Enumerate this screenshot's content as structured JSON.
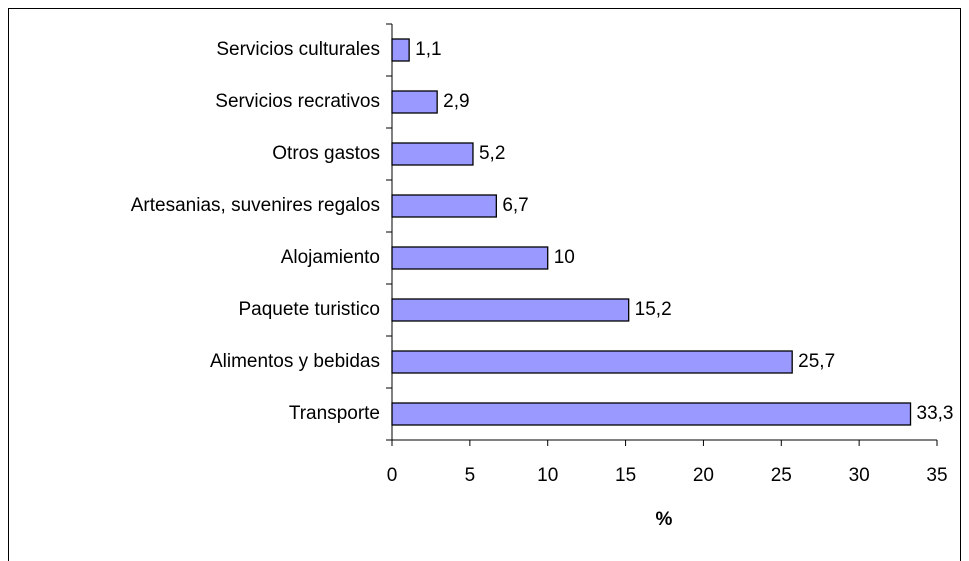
{
  "chart_data": {
    "type": "bar",
    "orientation": "horizontal",
    "categories": [
      "Servicios culturales",
      "Servicios recrativos",
      "Otros gastos",
      "Artesanias, suvenires regalos",
      "Alojamiento",
      "Paquete turistico",
      "Alimentos y bebidas",
      "Transporte"
    ],
    "values": [
      1.1,
      2.9,
      5.2,
      6.7,
      10,
      15.2,
      25.7,
      33.3
    ],
    "value_labels": [
      "1,1",
      "2,9",
      "5,2",
      "6,7",
      "10",
      "15,2",
      "25,7",
      "33,3"
    ],
    "color": "#9999ff",
    "xlabel": "%",
    "xlim": [
      0,
      35
    ],
    "xticks": [
      0,
      5,
      10,
      15,
      20,
      25,
      30,
      35
    ],
    "grid": false
  }
}
